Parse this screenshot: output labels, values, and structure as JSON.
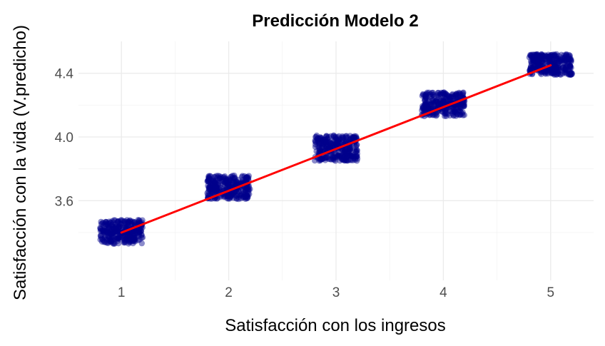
{
  "chart_data": {
    "type": "scatter",
    "title": "Predicción Modelo 2",
    "xlabel": "Satisfacción con los ingresos",
    "ylabel": "Satisfacción con la vida (V.predicho)",
    "xlim": [
      0.6,
      5.4
    ],
    "ylim": [
      3.1,
      4.6
    ],
    "x_ticks": [
      1,
      2,
      3,
      4,
      5
    ],
    "y_ticks": [
      3.6,
      4.0,
      4.4
    ],
    "y_tick_labels": [
      "3.6",
      "4.0",
      "4.4"
    ],
    "grid": true,
    "legend": "none",
    "point_color": "#00008B",
    "line_color": "#FF0000",
    "clusters": [
      {
        "x": 1,
        "y_levels": [
          3.37,
          3.44
        ],
        "jitter_x": 0.2,
        "jitter_y": 0.04
      },
      {
        "x": 2,
        "y_levels": [
          3.65,
          3.72
        ],
        "jitter_x": 0.2,
        "jitter_y": 0.04
      },
      {
        "x": 3,
        "y_levels": [
          3.89,
          3.97
        ],
        "jitter_x": 0.2,
        "jitter_y": 0.04
      },
      {
        "x": 4,
        "y_levels": [
          4.17,
          4.24
        ],
        "jitter_x": 0.2,
        "jitter_y": 0.04
      },
      {
        "x": 5,
        "y_levels": [
          4.42,
          4.49
        ],
        "jitter_x": 0.2,
        "jitter_y": 0.03
      }
    ],
    "trend_line": {
      "x": [
        1,
        5
      ],
      "y": [
        3.4,
        4.45
      ]
    }
  }
}
